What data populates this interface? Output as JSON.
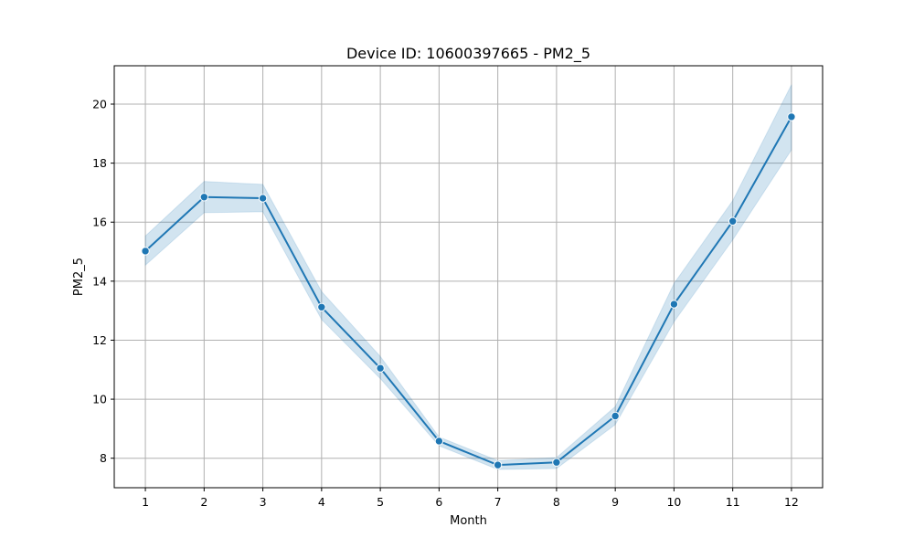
{
  "chart_data": {
    "type": "line",
    "title": "Device ID: 10600397665 - PM2_5",
    "xlabel": "Month",
    "ylabel": "PM2_5",
    "x": [
      1,
      2,
      3,
      4,
      5,
      6,
      7,
      8,
      9,
      10,
      11,
      12
    ],
    "xlim": [
      0.47,
      12.53
    ],
    "ylim": [
      7.0,
      21.3
    ],
    "x_ticks": [
      1,
      2,
      3,
      4,
      5,
      6,
      7,
      8,
      9,
      10,
      11,
      12
    ],
    "y_ticks": [
      8,
      10,
      12,
      14,
      16,
      18,
      20
    ],
    "grid": true,
    "series": [
      {
        "values": [
          15.02,
          16.85,
          16.81,
          13.12,
          11.05,
          8.58,
          7.77,
          7.86,
          9.43,
          13.22,
          16.03,
          19.57
        ],
        "ci_lower": [
          14.54,
          16.32,
          16.35,
          12.7,
          10.7,
          8.42,
          7.62,
          7.65,
          9.14,
          12.62,
          15.4,
          18.45
        ],
        "ci_upper": [
          15.53,
          17.38,
          17.28,
          13.65,
          11.45,
          8.72,
          7.92,
          8.02,
          9.75,
          13.92,
          16.73,
          20.66
        ],
        "color": "#1f77b4",
        "band_color": "#1f77b4"
      }
    ],
    "colors": {
      "grid": "#b0b0b0",
      "axes": "#000000",
      "marker_edge": "#ffffff"
    }
  }
}
